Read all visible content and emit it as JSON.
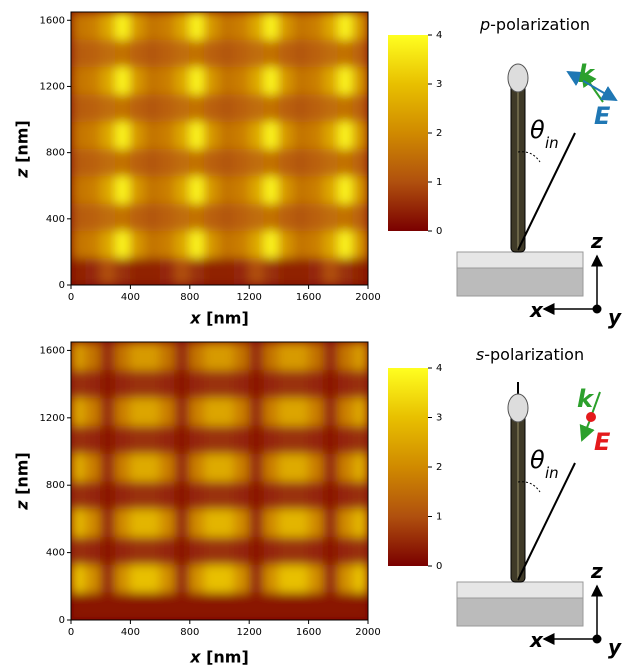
{
  "chart_data": [
    {
      "type": "heatmap",
      "xlabel": "x [nm]",
      "ylabel": "z [nm]",
      "xlim": [
        0,
        2000
      ],
      "ylim": [
        0,
        1650
      ],
      "xticks": [
        0,
        400,
        800,
        1200,
        1600,
        2000
      ],
      "yticks": [
        0,
        400,
        800,
        1200,
        1600
      ],
      "x": [
        50,
        150,
        250,
        350,
        450,
        550,
        650,
        750,
        850,
        950,
        1050,
        1150,
        1250,
        1350,
        1450,
        1550,
        1650,
        1750,
        1850,
        1950
      ],
      "y": [
        82.5,
        247.5,
        412.5,
        577.5,
        742.5,
        907.5,
        1072.5,
        1237.5,
        1402.5,
        1567.5
      ],
      "z": [
        [
          0.4,
          0.5,
          1.0,
          0.6,
          0.4,
          0.4,
          0.5,
          1.0,
          0.6,
          0.4,
          0.4,
          0.5,
          1.0,
          0.6,
          0.4,
          0.4,
          0.5,
          1.0,
          0.6,
          0.4
        ],
        [
          1.6,
          1.8,
          2.5,
          3.8,
          2.2,
          1.6,
          1.8,
          2.5,
          3.8,
          2.2,
          1.6,
          1.8,
          2.5,
          3.8,
          2.2,
          1.6,
          1.8,
          2.5,
          3.8,
          2.2
        ],
        [
          1.2,
          1.3,
          1.5,
          1.6,
          1.3,
          1.1,
          1.3,
          1.5,
          1.6,
          1.3,
          1.1,
          1.3,
          1.5,
          1.6,
          1.3,
          1.1,
          1.3,
          1.5,
          1.6,
          1.3
        ],
        [
          1.6,
          1.8,
          2.5,
          3.8,
          2.2,
          1.6,
          1.8,
          2.5,
          3.8,
          2.2,
          1.6,
          1.8,
          2.5,
          3.8,
          2.2,
          1.6,
          1.8,
          2.5,
          3.8,
          2.2
        ],
        [
          1.2,
          1.3,
          1.5,
          1.6,
          1.3,
          1.1,
          1.3,
          1.5,
          1.6,
          1.3,
          1.1,
          1.3,
          1.5,
          1.6,
          1.3,
          1.1,
          1.3,
          1.5,
          1.6,
          1.3
        ],
        [
          1.6,
          1.8,
          2.5,
          3.8,
          2.2,
          1.6,
          1.8,
          2.5,
          3.8,
          2.2,
          1.6,
          1.8,
          2.5,
          3.8,
          2.2,
          1.6,
          1.8,
          2.5,
          3.8,
          2.2
        ],
        [
          1.2,
          1.3,
          1.5,
          1.6,
          1.3,
          1.1,
          1.3,
          1.5,
          1.6,
          1.3,
          1.1,
          1.3,
          1.5,
          1.6,
          1.3,
          1.1,
          1.3,
          1.5,
          1.6,
          1.3
        ],
        [
          1.6,
          1.8,
          2.5,
          3.8,
          2.2,
          1.6,
          1.8,
          2.5,
          3.8,
          2.2,
          1.6,
          1.8,
          2.5,
          3.8,
          2.2,
          1.6,
          1.8,
          2.5,
          3.8,
          2.2
        ],
        [
          1.2,
          1.3,
          1.5,
          1.6,
          1.3,
          1.1,
          1.3,
          1.5,
          1.6,
          1.3,
          1.1,
          1.3,
          1.5,
          1.6,
          1.3,
          1.1,
          1.3,
          1.5,
          1.6,
          1.3
        ],
        [
          1.6,
          1.8,
          2.5,
          3.8,
          2.2,
          1.6,
          1.8,
          2.5,
          3.8,
          2.2,
          1.6,
          1.8,
          2.5,
          3.8,
          2.2,
          1.6,
          1.8,
          2.5,
          3.8,
          2.2
        ]
      ],
      "zlim": [
        0,
        4
      ],
      "zticks": [
        0,
        1,
        2,
        3,
        4
      ],
      "colors": [
        "#7a0000",
        "#b0500e",
        "#d08a00",
        "#e8c000",
        "#ffff20"
      ]
    },
    {
      "type": "heatmap",
      "xlabel": "x [nm]",
      "ylabel": "z [nm]",
      "xlim": [
        0,
        2000
      ],
      "ylim": [
        0,
        1650
      ],
      "xticks": [
        0,
        400,
        800,
        1200,
        1600,
        2000
      ],
      "yticks": [
        0,
        400,
        800,
        1200,
        1600
      ],
      "x": [
        50,
        150,
        250,
        350,
        450,
        550,
        650,
        750,
        850,
        950,
        1050,
        1150,
        1250,
        1350,
        1450,
        1550,
        1650,
        1750,
        1850,
        1950
      ],
      "y": [
        82.5,
        247.5,
        412.5,
        577.5,
        742.5,
        907.5,
        1072.5,
        1237.5,
        1402.5,
        1567.5
      ],
      "z": [
        [
          0.3,
          0.3,
          0.3,
          0.3,
          0.3,
          0.3,
          0.3,
          0.3,
          0.3,
          0.3,
          0.3,
          0.3,
          0.3,
          0.3,
          0.3,
          0.3,
          0.3,
          0.3,
          0.3,
          0.3
        ],
        [
          3.0,
          2.1,
          0.5,
          2.1,
          3.0,
          3.0,
          2.1,
          0.5,
          2.1,
          3.0,
          3.0,
          2.1,
          0.5,
          2.1,
          3.0,
          3.0,
          2.1,
          0.5,
          2.1,
          3.0
        ],
        [
          0.6,
          0.5,
          0.3,
          0.5,
          0.6,
          0.6,
          0.5,
          0.3,
          0.5,
          0.6,
          0.6,
          0.5,
          0.3,
          0.5,
          0.6,
          0.6,
          0.5,
          0.3,
          0.5,
          0.6
        ],
        [
          2.8,
          2.0,
          0.5,
          2.0,
          2.8,
          2.8,
          2.0,
          0.5,
          2.0,
          2.8,
          2.8,
          2.0,
          0.5,
          2.0,
          2.8,
          2.8,
          2.0,
          0.5,
          2.0,
          2.8
        ],
        [
          0.6,
          0.5,
          0.3,
          0.5,
          0.6,
          0.6,
          0.5,
          0.3,
          0.5,
          0.6,
          0.6,
          0.5,
          0.3,
          0.5,
          0.6,
          0.6,
          0.5,
          0.3,
          0.5,
          0.6
        ],
        [
          2.6,
          1.8,
          0.5,
          1.8,
          2.6,
          2.6,
          1.8,
          0.5,
          1.8,
          2.6,
          2.6,
          1.8,
          0.5,
          1.8,
          2.6,
          2.6,
          1.8,
          0.5,
          1.8,
          2.6
        ],
        [
          0.6,
          0.5,
          0.3,
          0.5,
          0.6,
          0.6,
          0.5,
          0.3,
          0.5,
          0.6,
          0.6,
          0.5,
          0.3,
          0.5,
          0.6,
          0.6,
          0.5,
          0.3,
          0.5,
          0.6
        ],
        [
          2.5,
          1.8,
          0.5,
          1.8,
          2.5,
          2.5,
          1.8,
          0.5,
          1.8,
          2.5,
          2.5,
          1.8,
          0.5,
          1.8,
          2.5,
          2.5,
          1.8,
          0.5,
          1.8,
          2.5
        ],
        [
          0.6,
          0.5,
          0.3,
          0.5,
          0.6,
          0.6,
          0.5,
          0.3,
          0.5,
          0.6,
          0.6,
          0.5,
          0.3,
          0.5,
          0.6,
          0.6,
          0.5,
          0.3,
          0.5,
          0.6
        ],
        [
          2.3,
          1.6,
          0.5,
          1.6,
          2.3,
          2.3,
          1.6,
          0.5,
          1.6,
          2.3,
          2.3,
          1.6,
          0.5,
          1.6,
          2.3,
          2.3,
          1.6,
          0.5,
          1.6,
          2.3
        ]
      ],
      "zlim": [
        0,
        4
      ],
      "zticks": [
        0,
        1,
        2,
        3,
        4
      ],
      "colors": [
        "#7a0000",
        "#b0500e",
        "#d08a00",
        "#e8c000",
        "#ffff20"
      ]
    }
  ],
  "diagrams": [
    {
      "title": "p-polarization",
      "k": "k",
      "E": "E",
      "angle": "θ",
      "angle_sub": "in",
      "z": "z",
      "x": "x",
      "y": "y"
    },
    {
      "title": "s-polarization",
      "k": "k",
      "E": "E",
      "angle": "θ",
      "angle_sub": "in",
      "z": "z",
      "x": "x",
      "y": "y"
    }
  ]
}
